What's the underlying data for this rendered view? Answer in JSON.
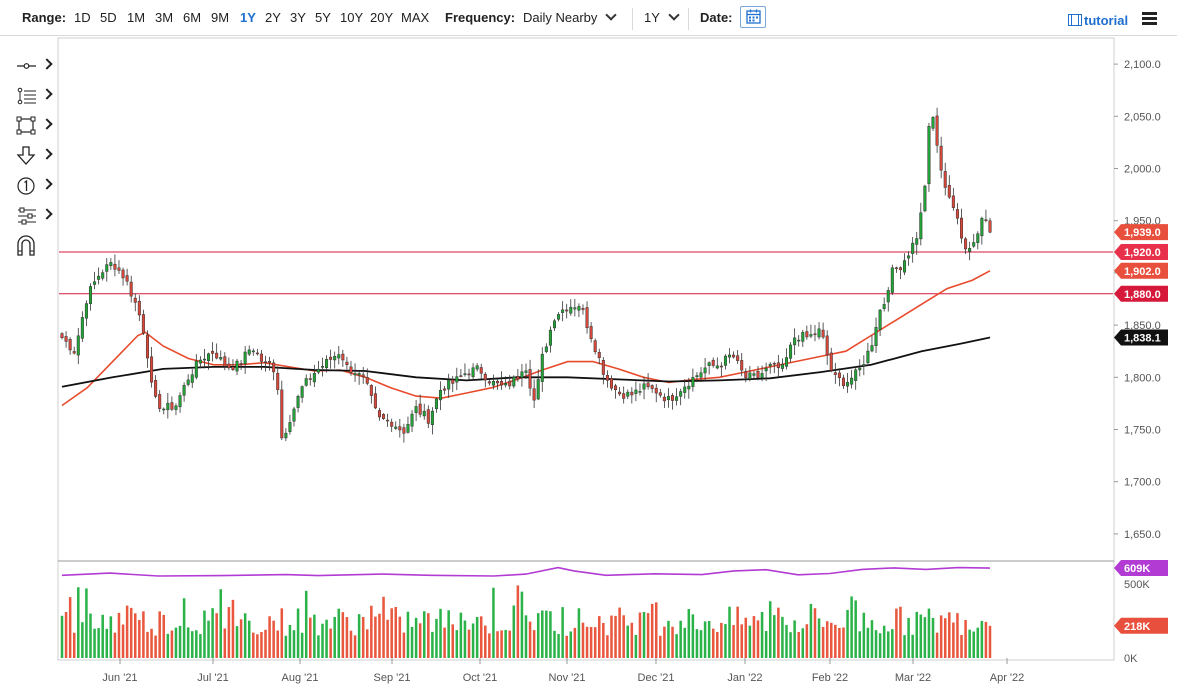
{
  "toolbar": {
    "range_label": "Range:",
    "ranges": [
      "1D",
      "5D",
      "1M",
      "3M",
      "6M",
      "9M",
      "1Y",
      "2Y",
      "3Y",
      "5Y",
      "10Y",
      "20Y",
      "MAX"
    ],
    "active_range": "1Y",
    "frequency_label": "Frequency:",
    "frequency_value": "Daily Nearby",
    "period_value": "1Y",
    "date_label": "Date:",
    "tutorial_label": "tutorial",
    "icons": [
      "calendar-icon",
      "film-icon",
      "menu-icon",
      "chevron-down-icon"
    ]
  },
  "sidebar": {
    "tools": [
      "crosshair-tool-icon",
      "fibonacci-tool-icon",
      "rectangle-tool-icon",
      "arrow-down-tool-icon",
      "counter-tool-icon",
      "layers-tool-icon",
      "magnet-tool-icon"
    ]
  },
  "chart_data": {
    "type": "candlestick",
    "ylim": [
      1625,
      2125
    ],
    "y_ticks": [
      "2,100.0",
      "2,050.0",
      "2,000.0",
      "1,950.0",
      "1,900.0",
      "1,850.0",
      "1,800.0",
      "1,750.0",
      "1,700.0",
      "1,650.0"
    ],
    "y_tick_values": [
      2100,
      2050,
      2000,
      1950,
      1900,
      1850,
      1800,
      1750,
      1700,
      1650
    ],
    "x_ticks": [
      "Jun '21",
      "Jul '21",
      "Aug '21",
      "Sep '21",
      "Oct '21",
      "Nov '21",
      "Dec '21",
      "Jan '22",
      "Feb '22",
      "Mar '22",
      "Apr '22"
    ],
    "n_bars": 229,
    "close_anchors": [
      [
        0,
        1838
      ],
      [
        5,
        1825
      ],
      [
        10,
        1878
      ],
      [
        15,
        1900
      ],
      [
        20,
        1910
      ],
      [
        25,
        1895
      ],
      [
        30,
        1865
      ],
      [
        33,
        1838
      ],
      [
        36,
        1780
      ],
      [
        40,
        1770
      ],
      [
        45,
        1773
      ],
      [
        50,
        1800
      ],
      [
        55,
        1818
      ],
      [
        60,
        1825
      ],
      [
        65,
        1810
      ],
      [
        70,
        1812
      ],
      [
        75,
        1830
      ],
      [
        80,
        1812
      ],
      [
        83,
        1813
      ],
      [
        85,
        1800
      ],
      [
        87,
        1740
      ],
      [
        90,
        1760
      ],
      [
        95,
        1790
      ],
      [
        100,
        1805
      ],
      [
        105,
        1815
      ],
      [
        110,
        1825
      ],
      [
        113,
        1808
      ],
      [
        115,
        1808
      ],
      [
        118,
        1800
      ],
      [
        120,
        1795
      ],
      [
        125,
        1760
      ],
      [
        130,
        1758
      ],
      [
        135,
        1748
      ],
      [
        140,
        1770
      ],
      [
        145,
        1760
      ],
      [
        150,
        1790
      ],
      [
        155,
        1795
      ],
      [
        160,
        1805
      ],
      [
        165,
        1808
      ],
      [
        170,
        1795
      ],
      [
        175,
        1790
      ],
      [
        180,
        1800
      ],
      [
        183,
        1815
      ],
      [
        185,
        1795
      ],
      [
        187,
        1775
      ],
      [
        190,
        1820
      ],
      [
        195,
        1860
      ],
      [
        200,
        1868
      ],
      [
        205,
        1870
      ],
      [
        207,
        1855
      ],
      [
        210,
        1835
      ],
      [
        215,
        1800
      ],
      [
        220,
        1785
      ],
      [
        225,
        1783
      ],
      [
        230,
        1790
      ],
      [
        235,
        1787
      ],
      [
        240,
        1778
      ],
      [
        245,
        1790
      ],
      [
        250,
        1800
      ],
      [
        255,
        1810
      ],
      [
        260,
        1812
      ],
      [
        265,
        1822
      ],
      [
        270,
        1800
      ],
      [
        275,
        1800
      ],
      [
        280,
        1810
      ],
      [
        285,
        1808
      ],
      [
        290,
        1840
      ],
      [
        295,
        1838
      ],
      [
        300,
        1845
      ],
      [
        305,
        1800
      ],
      [
        310,
        1795
      ],
      [
        315,
        1805
      ],
      [
        320,
        1830
      ],
      [
        323,
        1862
      ],
      [
        325,
        1870
      ],
      [
        328,
        1900
      ],
      [
        332,
        1908
      ],
      [
        335,
        1920
      ],
      [
        338,
        1935
      ],
      [
        340,
        1960
      ],
      [
        342,
        2000
      ],
      [
        343,
        2043
      ],
      [
        345,
        2050
      ],
      [
        347,
        2000
      ],
      [
        350,
        1980
      ],
      [
        353,
        1960
      ],
      [
        356,
        1930
      ],
      [
        358,
        1925
      ],
      [
        361,
        1930
      ],
      [
        364,
        1955
      ],
      [
        366,
        1949
      ],
      [
        367,
        1939
      ]
    ],
    "levels": [
      {
        "value": 1920,
        "label": "1,920.0",
        "color": "#d6193a"
      },
      {
        "value": 1880,
        "label": "1,880.0",
        "color": "#d6193a"
      }
    ],
    "price_tags": [
      {
        "value": 1939,
        "label": "1,939.0",
        "color": "#e84f3d"
      },
      {
        "value": 1920,
        "label": "1,920.0",
        "color": "#e8304a"
      },
      {
        "value": 1902,
        "label": "1,902.0",
        "color": "#e84f3d"
      },
      {
        "value": 1880,
        "label": "1,880.0",
        "color": "#d6193a"
      },
      {
        "value": 1838.1,
        "label": "1,838.1",
        "color": "#111111"
      }
    ],
    "ma_fast": {
      "color": "#e84b2c",
      "points": [
        [
          0,
          1773
        ],
        [
          10,
          1790
        ],
        [
          20,
          1815
        ],
        [
          30,
          1840
        ],
        [
          33,
          1843
        ],
        [
          40,
          1830
        ],
        [
          50,
          1818
        ],
        [
          60,
          1812
        ],
        [
          70,
          1812
        ],
        [
          80,
          1814
        ],
        [
          90,
          1810
        ],
        [
          100,
          1806
        ],
        [
          110,
          1807
        ],
        [
          120,
          1800
        ],
        [
          130,
          1790
        ],
        [
          140,
          1782
        ],
        [
          150,
          1780
        ],
        [
          160,
          1785
        ],
        [
          170,
          1790
        ],
        [
          180,
          1798
        ],
        [
          190,
          1807
        ],
        [
          200,
          1815
        ],
        [
          210,
          1815
        ],
        [
          220,
          1808
        ],
        [
          230,
          1800
        ],
        [
          240,
          1795
        ],
        [
          250,
          1798
        ],
        [
          260,
          1800
        ],
        [
          270,
          1805
        ],
        [
          280,
          1810
        ],
        [
          290,
          1815
        ],
        [
          300,
          1820
        ],
        [
          310,
          1825
        ],
        [
          320,
          1840
        ],
        [
          330,
          1855
        ],
        [
          340,
          1870
        ],
        [
          350,
          1885
        ],
        [
          360,
          1893
        ],
        [
          367,
          1902
        ]
      ]
    },
    "ma_slow": {
      "color": "#111111",
      "points": [
        [
          0,
          1791
        ],
        [
          20,
          1800
        ],
        [
          40,
          1808
        ],
        [
          60,
          1810
        ],
        [
          80,
          1810
        ],
        [
          100,
          1807
        ],
        [
          120,
          1806
        ],
        [
          140,
          1800
        ],
        [
          160,
          1797
        ],
        [
          180,
          1800
        ],
        [
          200,
          1800
        ],
        [
          220,
          1798
        ],
        [
          240,
          1796
        ],
        [
          260,
          1797
        ],
        [
          280,
          1799
        ],
        [
          300,
          1805
        ],
        [
          320,
          1812
        ],
        [
          340,
          1825
        ],
        [
          355,
          1832
        ],
        [
          367,
          1838.1
        ]
      ]
    },
    "volume": {
      "ylim": [
        0,
        650000
      ],
      "y_ticks": [
        "500K",
        "0K"
      ],
      "y_tick_values": [
        500000,
        0
      ],
      "oi_tag": {
        "label": "609K",
        "value": 609000,
        "color": "#b23bd3"
      },
      "vol_tag": {
        "label": "218K",
        "value": 218000,
        "color": "#e84f3d"
      },
      "oi_line": {
        "color": "#b23bd3",
        "points": [
          [
            0,
            560000
          ],
          [
            30,
            575000
          ],
          [
            60,
            555000
          ],
          [
            100,
            558000
          ],
          [
            140,
            565000
          ],
          [
            160,
            558000
          ],
          [
            200,
            568000
          ],
          [
            230,
            560000
          ],
          [
            270,
            555000
          ],
          [
            290,
            568000
          ],
          [
            310,
            612000
          ],
          [
            320,
            590000
          ],
          [
            340,
            560000
          ],
          [
            370,
            570000
          ],
          [
            400,
            565000
          ],
          [
            420,
            590000
          ],
          [
            440,
            598000
          ],
          [
            460,
            563000
          ],
          [
            480,
            572000
          ],
          [
            500,
            600000
          ],
          [
            520,
            610000
          ],
          [
            540,
            600000
          ],
          [
            560,
            612000
          ],
          [
            580,
            609000
          ]
        ]
      }
    }
  }
}
